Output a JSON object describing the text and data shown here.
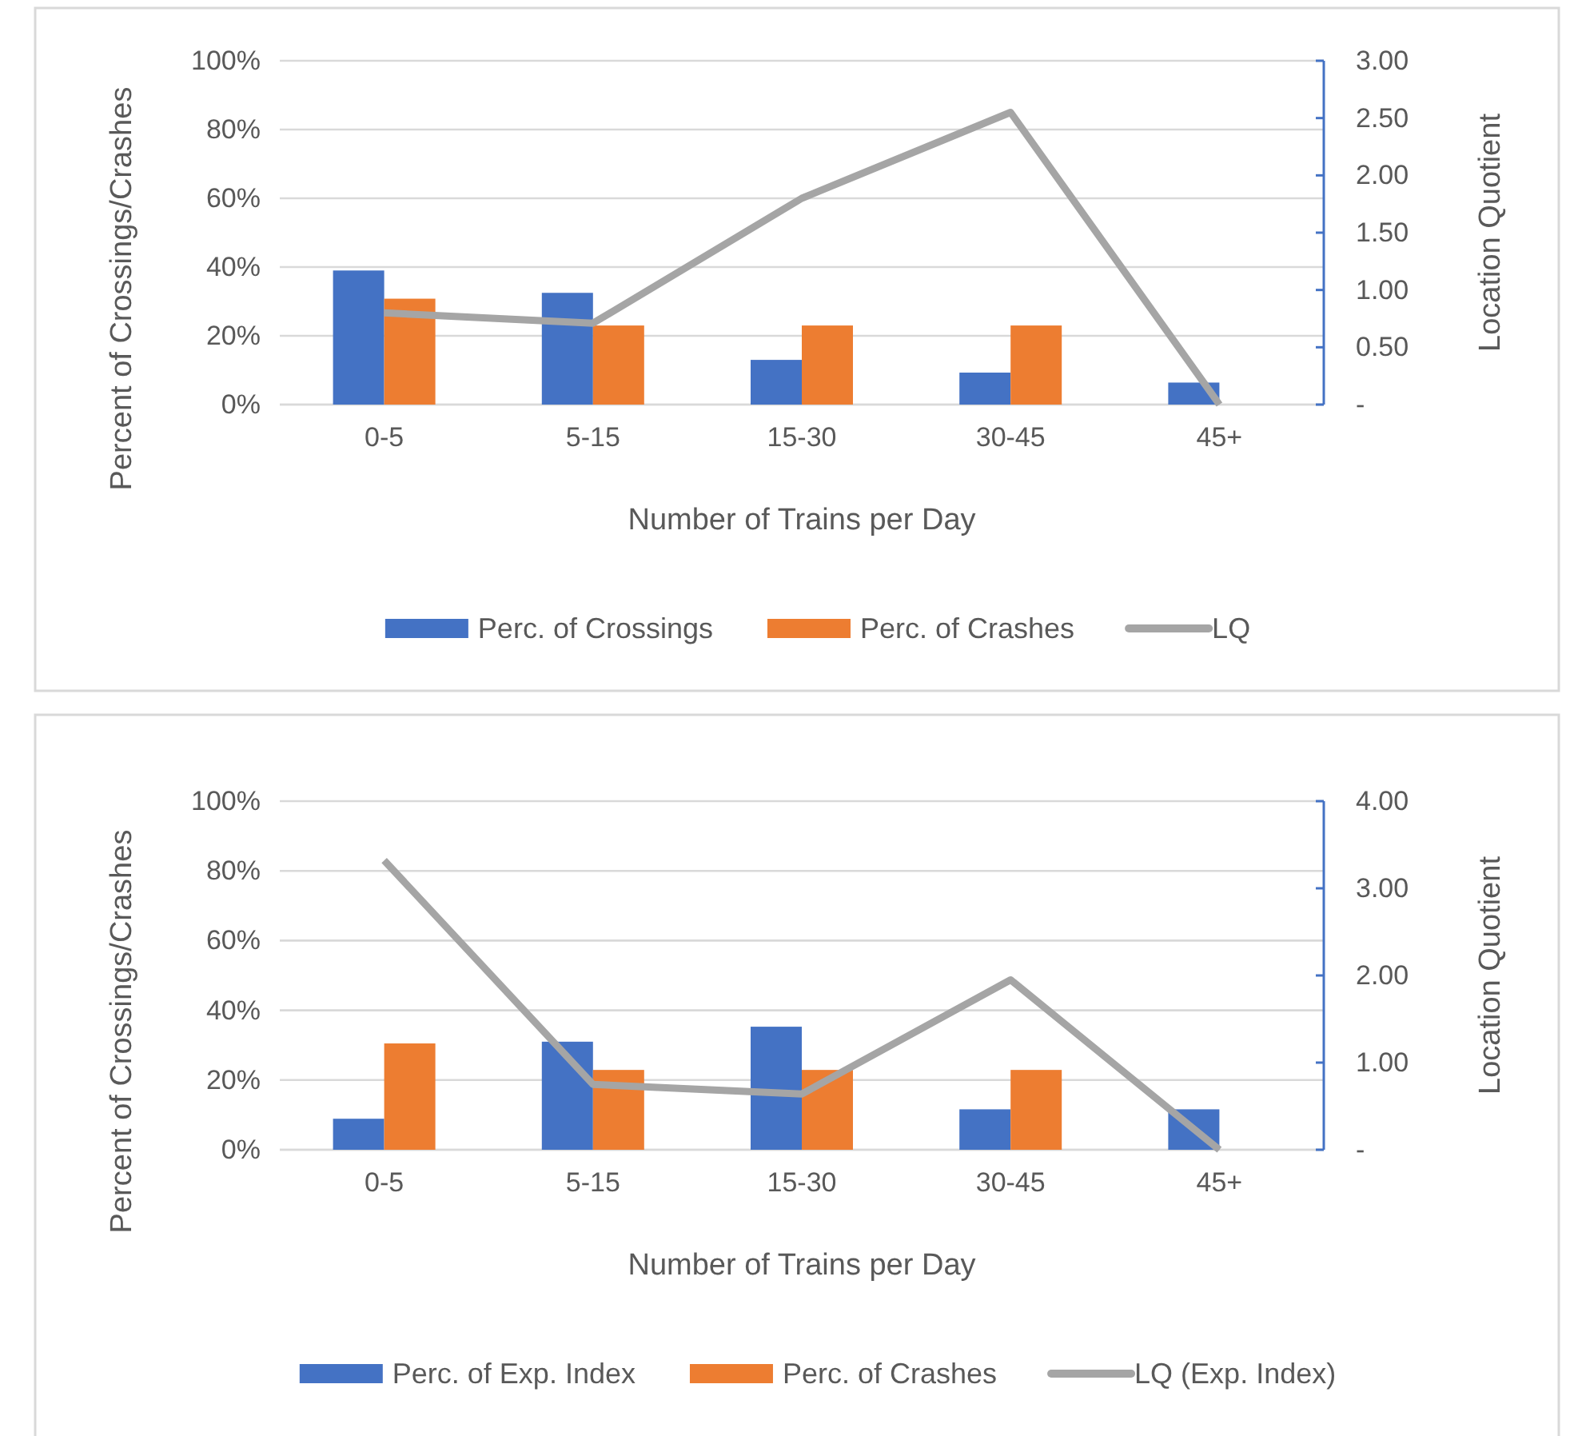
{
  "chart_data": [
    {
      "type": "bar",
      "xlabel": "Number of Trains per Day",
      "ylabel": "Percent of Crossings/Crashes",
      "y2label": "Location Quotient",
      "categories": [
        "0-5",
        "5-15",
        "15-30",
        "30-45",
        "45+"
      ],
      "series": [
        {
          "name": "Perc. of Crossings",
          "color": "#4472c4",
          "values": [
            39,
            32.5,
            13,
            9.3,
            6.4
          ]
        },
        {
          "name": "Perc. of Crashes",
          "color": "#ed7d31",
          "values": [
            30.8,
            23,
            23,
            23,
            0
          ]
        },
        {
          "name": "LQ",
          "type": "line",
          "axis": "y2",
          "color": "#a5a5a5",
          "values": [
            0.8,
            0.71,
            1.8,
            2.55,
            0
          ]
        }
      ],
      "ylim": [
        0,
        100
      ],
      "yticks": [
        {
          "value": 0,
          "label": "0%"
        },
        {
          "value": 20,
          "label": "20%"
        },
        {
          "value": 40,
          "label": "40%"
        },
        {
          "value": 60,
          "label": "60%"
        },
        {
          "value": 80,
          "label": "80%"
        },
        {
          "value": 100,
          "label": "100%"
        }
      ],
      "y2lim": [
        0,
        3
      ],
      "y2ticks": [
        {
          "value": 0,
          "label": "-"
        },
        {
          "value": 0.5,
          "label": "0.50"
        },
        {
          "value": 1,
          "label": "1.00"
        },
        {
          "value": 1.5,
          "label": "1.50"
        },
        {
          "value": 2,
          "label": "2.00"
        },
        {
          "value": 2.5,
          "label": "2.50"
        },
        {
          "value": 3,
          "label": "3.00"
        }
      ],
      "grid": "y",
      "legend": "bottom"
    },
    {
      "type": "bar",
      "xlabel": "Number of Trains per Day",
      "ylabel": "Percent of Crossings/Crashes",
      "y2label": "Location Quotient",
      "categories": [
        "0-5",
        "5-15",
        "15-30",
        "30-45",
        "45+"
      ],
      "series": [
        {
          "name": "Perc. of Exp. Index",
          "color": "#4472c4",
          "values": [
            8.9,
            31,
            35.3,
            11.6,
            11.6
          ]
        },
        {
          "name": "Perc. of Crashes",
          "color": "#ed7d31",
          "values": [
            30.5,
            22.9,
            22.9,
            22.9,
            0
          ]
        },
        {
          "name": "LQ (Exp. Index)",
          "type": "line",
          "axis": "y2",
          "color": "#a5a5a5",
          "values": [
            3.32,
            0.75,
            0.64,
            1.95,
            0
          ]
        }
      ],
      "ylim": [
        0,
        100
      ],
      "yticks": [
        {
          "value": 0,
          "label": "0%"
        },
        {
          "value": 20,
          "label": "20%"
        },
        {
          "value": 40,
          "label": "40%"
        },
        {
          "value": 60,
          "label": "60%"
        },
        {
          "value": 80,
          "label": "80%"
        },
        {
          "value": 100,
          "label": "100%"
        }
      ],
      "y2lim": [
        0,
        4
      ],
      "y2ticks": [
        {
          "value": 0,
          "label": "-"
        },
        {
          "value": 1,
          "label": "1.00"
        },
        {
          "value": 2,
          "label": "2.00"
        },
        {
          "value": 3,
          "label": "3.00"
        },
        {
          "value": 4,
          "label": "4.00"
        }
      ],
      "grid": "y",
      "legend": "bottom"
    }
  ]
}
